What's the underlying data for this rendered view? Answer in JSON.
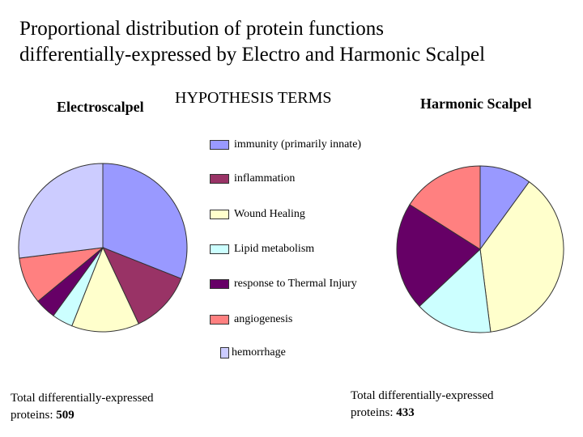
{
  "title_line1": "Proportional distribution of protein functions",
  "title_line2": "differentially-expressed by Electro and Harmonic Scalpel",
  "legend_title": "HYPOTHESIS TERMS",
  "chart_data": [
    {
      "type": "pie",
      "title": "Electroscalpel",
      "slices": [
        {
          "label": "immunity (primarily innate)",
          "value": 31,
          "color": "#9999ff"
        },
        {
          "label": "inflammation",
          "value": 12,
          "color": "#993366"
        },
        {
          "label": "Wound Healing",
          "value": 13,
          "color": "#ffffcc"
        },
        {
          "label": "Lipid metabolism",
          "value": 4,
          "color": "#ccffff"
        },
        {
          "label": "response to Thermal Injury",
          "value": 4,
          "color": "#660066"
        },
        {
          "label": "angiogenesis",
          "value": 9,
          "color": "#ff8080"
        },
        {
          "label": "hemorrhage",
          "value": 27,
          "color": "#ccccff"
        }
      ],
      "total_label": "Total differentially-expressed",
      "total_prefix": "proteins:",
      "total_value": "509"
    },
    {
      "type": "pie",
      "title": "Harmonic Scalpel",
      "slices": [
        {
          "label": "immunity (primarily innate)",
          "value": 10,
          "color": "#9999ff"
        },
        {
          "label": "Wound Healing",
          "value": 38,
          "color": "#ffffcc"
        },
        {
          "label": "Lipid metabolism",
          "value": 15,
          "color": "#ccffff"
        },
        {
          "label": "response to Thermal Injury",
          "value": 21,
          "color": "#660066"
        },
        {
          "label": "angiogenesis",
          "value": 16,
          "color": "#ff8080"
        }
      ],
      "total_label": "Total differentially-expressed",
      "total_prefix": "proteins:",
      "total_value": "433"
    }
  ],
  "legend": [
    {
      "label": "immunity (primarily innate)",
      "color": "#9999ff"
    },
    {
      "label": "inflammation",
      "color": "#993366"
    },
    {
      "label": "Wound Healing",
      "color": "#ffffcc"
    },
    {
      "label": "Lipid metabolism",
      "color": "#ccffff"
    },
    {
      "label": "response to Thermal Injury",
      "color": "#660066"
    },
    {
      "label": "angiogenesis",
      "color": "#ff8080"
    },
    {
      "label": "hemorrhage",
      "color": "#ccccff"
    }
  ]
}
